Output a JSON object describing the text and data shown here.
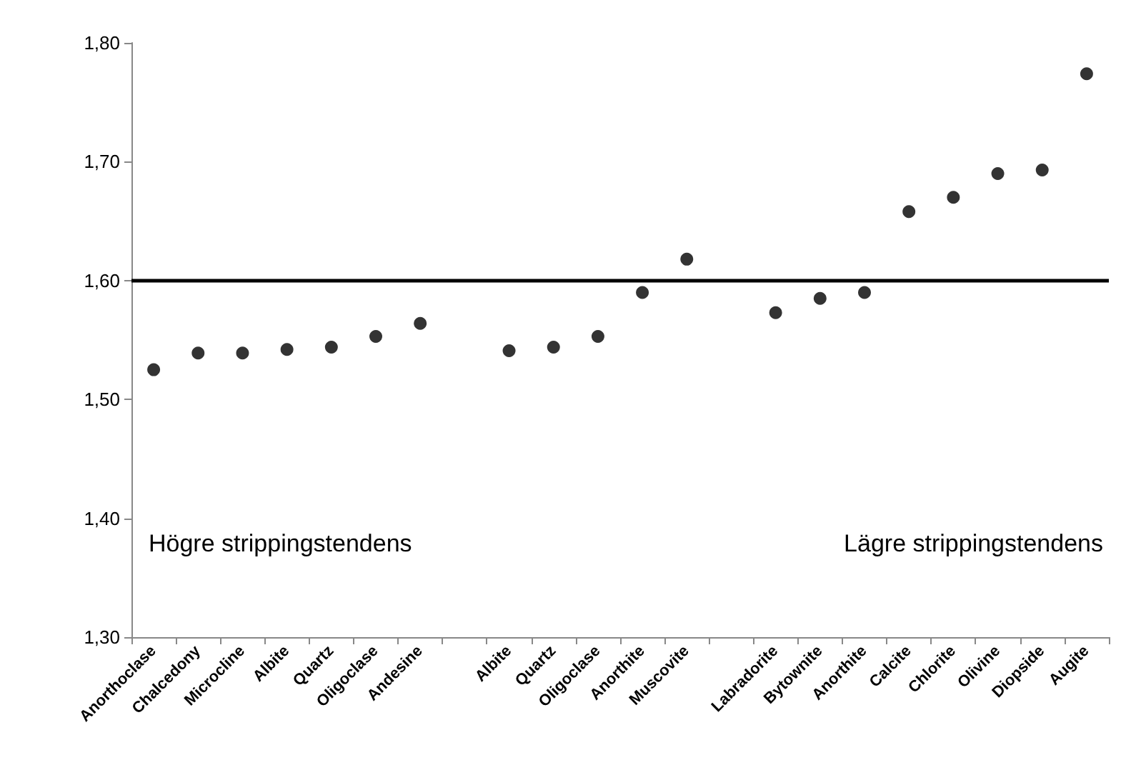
{
  "chart_data": {
    "type": "scatter",
    "categories": [
      "Anorthoclase",
      "Chalcedony",
      "Microcline",
      "Albite",
      "Quartz",
      "Oligoclase",
      "Andesine",
      null,
      "Albite",
      "Quartz",
      "Oligoclase",
      "Anorthite",
      "Muscovite",
      null,
      "Labradorite",
      "Bytownite",
      "Anorthite",
      "Calcite",
      "Chlorite",
      "Olivine",
      "Diopside",
      "Augite"
    ],
    "series": [
      {
        "color": "#000000",
        "values": [
          1.525,
          1.539,
          1.539,
          1.542,
          1.544,
          1.553,
          1.564,
          null,
          1.541,
          1.544,
          1.553,
          1.59,
          1.618,
          null,
          1.573,
          1.585,
          1.59,
          1.658,
          1.67,
          1.69,
          1.693,
          1.774
        ]
      }
    ],
    "ylim": [
      1.3,
      1.8
    ],
    "yticks": [
      {
        "value": 1.3,
        "label": "1,30"
      },
      {
        "value": 1.4,
        "label": "1,40"
      },
      {
        "value": 1.5,
        "label": "1,50"
      },
      {
        "value": 1.6,
        "label": "1,60"
      },
      {
        "value": 1.7,
        "label": "1,70"
      },
      {
        "value": 1.8,
        "label": "1,80"
      }
    ],
    "ref_lines": [
      {
        "axis": "y",
        "value": 1.6,
        "color": "#000000",
        "line_style": "solid"
      }
    ],
    "annotations": [
      "Högre strippingstendens",
      "Lägre strippingstendens"
    ],
    "grid": false,
    "marker": "circle"
  }
}
